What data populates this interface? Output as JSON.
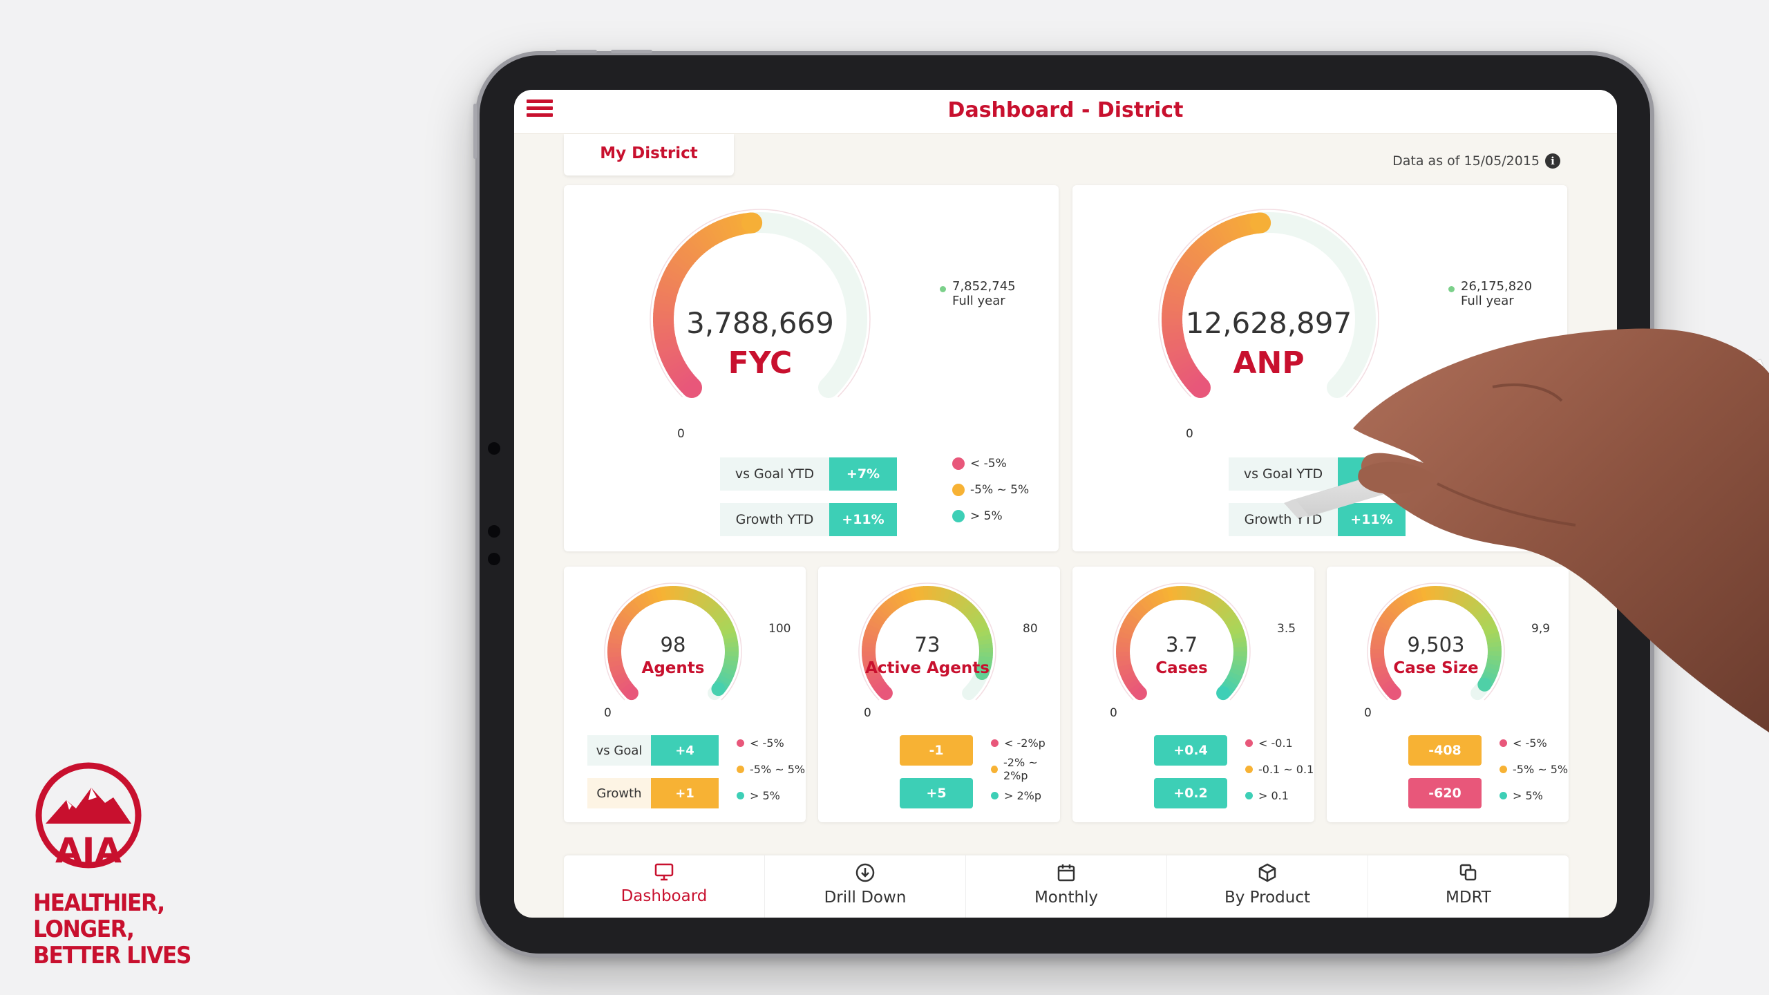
{
  "brand": {
    "logo_text": "AIA",
    "tagline_line1": "HEALTHIER, LONGER,",
    "tagline_line2": "BETTER LIVES",
    "color": "#c8102e"
  },
  "header": {
    "title": "Dashboard - District",
    "menu_icon": "hamburger-menu-icon"
  },
  "tab": {
    "label": "My District"
  },
  "data_as_of": "Data as of 15/05/2015",
  "colors": {
    "accent": "#c8102e",
    "teal": "#3dcfb6",
    "orange": "#f7b234",
    "pink": "#e8577a"
  },
  "big_gauges": [
    {
      "value": "3,788,669",
      "label": "FYC",
      "zero": "0",
      "target": "7,852,745",
      "target_caption": "Full year",
      "vs_goal_label": "vs Goal YTD",
      "vs_goal_value": "+7%",
      "growth_label": "Growth YTD",
      "growth_value": "+11%",
      "fill": 0.482
    },
    {
      "value": "12,628,897",
      "label": "ANP",
      "zero": "0",
      "target": "26,175,820",
      "target_caption": "Full year",
      "vs_goal_label": "vs Goal YTD",
      "vs_goal_value": "",
      "growth_label": "Growth YTD",
      "growth_value": "+11%",
      "fill": 0.482
    }
  ],
  "big_legend": [
    "< -5%",
    "-5% ~ 5%",
    "> 5%"
  ],
  "small_gauges": [
    {
      "value": "98",
      "label": "Agents",
      "zero": "0",
      "target": "100",
      "fill": 0.98,
      "row1_label": "vs Goal",
      "row1_value": "+4",
      "row2_label": "Growth",
      "row2_value": "+1",
      "legend": [
        "< -5%",
        "-5% ~ 5%",
        "> 5%"
      ]
    },
    {
      "value": "73",
      "label": "Active Agents",
      "zero": "0",
      "target": "80",
      "fill": 0.9125,
      "row1_value": "-1",
      "row2_value": "+5",
      "legend": [
        "< -2%p",
        "-2% ~ 2%p",
        "> 2%p"
      ]
    },
    {
      "value": "3.7",
      "label": "Cases",
      "zero": "0",
      "target": "3.5",
      "fill": 1.0,
      "row1_value": "+0.4",
      "row2_value": "+0.2",
      "legend": [
        "< -0.1",
        "-0.1 ~ 0.1",
        "> 0.1"
      ]
    },
    {
      "value": "9,503",
      "label": "Case Size",
      "zero": "0",
      "target": "9,9",
      "fill": 0.96,
      "row1_value": "-408",
      "row2_value": "-620",
      "legend": [
        "< -5%",
        "-5% ~ 5%",
        "> 5%"
      ]
    }
  ],
  "nav": [
    {
      "label": "Dashboard",
      "icon": "monitor-icon",
      "active": true
    },
    {
      "label": "Drill Down",
      "icon": "download-circle-icon",
      "active": false
    },
    {
      "label": "Monthly",
      "icon": "calendar-icon",
      "active": false
    },
    {
      "label": "By Product",
      "icon": "box-icon",
      "active": false
    },
    {
      "label": "MDRT",
      "icon": "copy-icon",
      "active": false
    }
  ]
}
